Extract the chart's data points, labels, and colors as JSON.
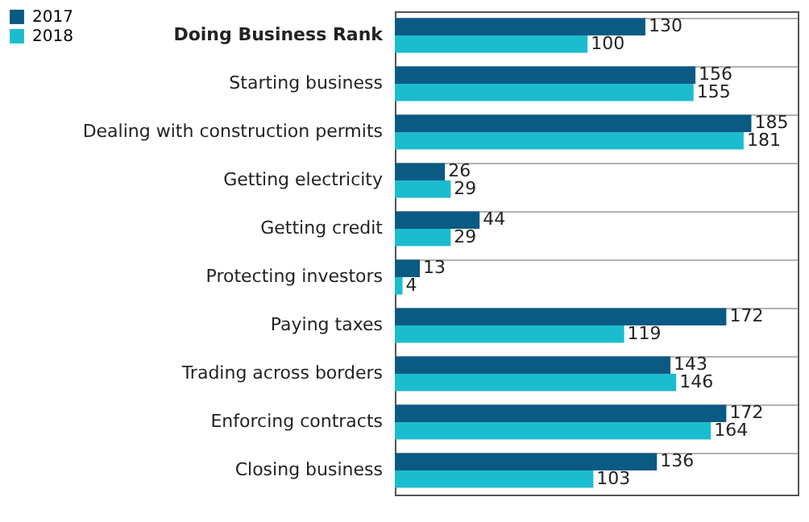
{
  "chart_data": {
    "type": "bar",
    "orientation": "horizontal",
    "categories": [
      "Doing Business Rank",
      "Starting business",
      "Dealing with construction permits",
      "Getting electricity",
      "Getting credit",
      "Protecting investors",
      "Paying taxes",
      "Trading across borders",
      "Enforcing contracts",
      "Closing business"
    ],
    "series": [
      {
        "name": "2017",
        "color": "#0b5a84",
        "values": [
          130,
          156,
          185,
          26,
          44,
          13,
          172,
          143,
          172,
          136
        ]
      },
      {
        "name": "2018",
        "color": "#1cbccf",
        "values": [
          100,
          155,
          181,
          29,
          29,
          4,
          119,
          146,
          164,
          103
        ]
      }
    ],
    "data_labels": true,
    "grid": "y",
    "legend": "top left"
  }
}
